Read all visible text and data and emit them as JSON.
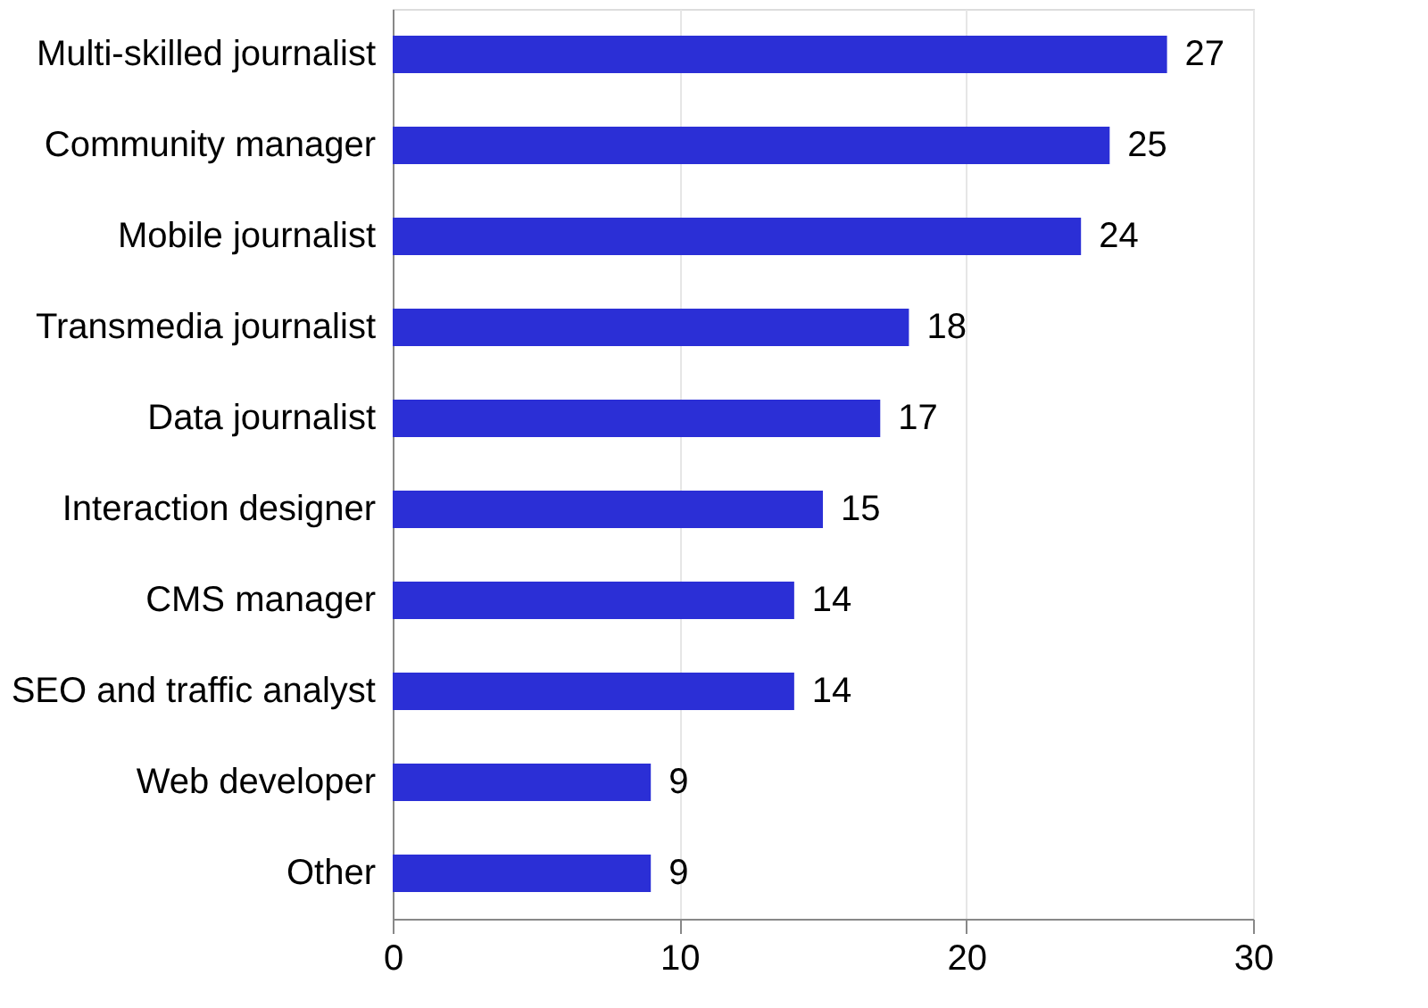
{
  "chart_data": {
    "type": "bar",
    "orientation": "horizontal",
    "categories": [
      "Multi-skilled journalist",
      "Community manager",
      "Mobile journalist",
      "Transmedia journalist",
      "Data journalist",
      "Interaction designer",
      "CMS manager",
      "SEO and traffic analyst",
      "Web developer",
      "Other"
    ],
    "values": [
      27,
      25,
      24,
      18,
      17,
      15,
      14,
      14,
      9,
      9
    ],
    "color": "#2b2fd6",
    "xlim": [
      0,
      30
    ],
    "xticks": [
      0,
      10,
      20,
      30
    ],
    "grid": "x",
    "data_labels": true
  }
}
